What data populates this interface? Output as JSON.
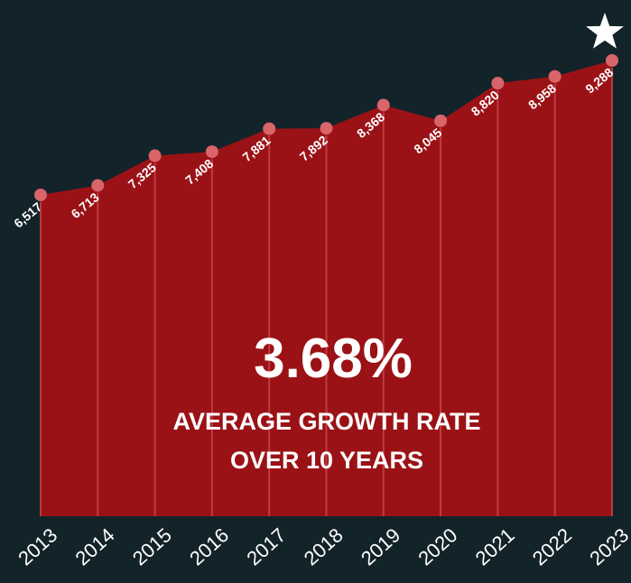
{
  "colors": {
    "background": "#13232a",
    "area": "#9b1216",
    "marker": "#d9646a",
    "dropline": "#c9464c",
    "text": "#ffffff",
    "star": "#ffffff"
  },
  "icons": {
    "top_marker": "star-icon"
  },
  "highlight": {
    "value": "3.68%",
    "caption_line1": "AVERAGE GROWTH RATE",
    "caption_line2": "OVER 10 YEARS"
  },
  "chart_data": {
    "type": "area",
    "x": [
      "2013",
      "2014",
      "2015",
      "2016",
      "2017",
      "2018",
      "2019",
      "2020",
      "2021",
      "2022",
      "2023"
    ],
    "values": [
      6517,
      6713,
      7325,
      7408,
      7881,
      7892,
      8368,
      8045,
      8820,
      8958,
      9288
    ],
    "value_labels": [
      "6,517",
      "6,713",
      "7,325",
      "7,408",
      "7,881",
      "7,892",
      "8,368",
      "8,045",
      "8,820",
      "8,958",
      "9,288"
    ],
    "markers": true,
    "grid": false,
    "legend": "none"
  }
}
